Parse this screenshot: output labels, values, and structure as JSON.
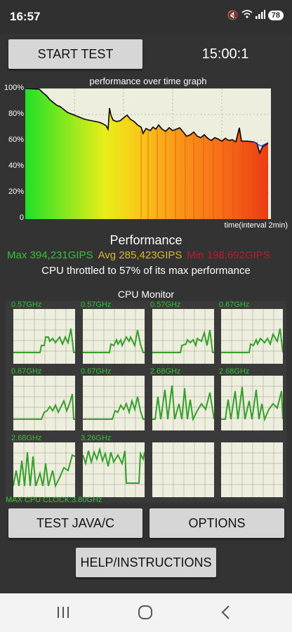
{
  "status_bar": {
    "time": "16:57",
    "battery": "78"
  },
  "buttons": {
    "start_test": "START TEST",
    "test_java_c": "TEST JAVA/C",
    "options": "OPTIONS",
    "help": "HELP/INSTRUCTIONS"
  },
  "timer": "15:00:1",
  "graph": {
    "title": "performance over time graph",
    "y_ticks": [
      "100%",
      "80%",
      "60%",
      "40%",
      "20%",
      "0"
    ],
    "x_label": "time(interval 2min)"
  },
  "performance": {
    "title": "Performance",
    "max": "Max 394,231GIPS",
    "avg": "Avg 285,423GIPS",
    "min": "Min 198,692GIPS",
    "throttle_text": "CPU throttled to 57% of its max performance"
  },
  "cpu_monitor": {
    "title": "CPU Monitor",
    "cores": [
      {
        "freq": "0.57GHz"
      },
      {
        "freq": "0.57GHz"
      },
      {
        "freq": "0.57GHz"
      },
      {
        "freq": "0.67GHz"
      },
      {
        "freq": "0.67GHz"
      },
      {
        "freq": "0.67GHz"
      },
      {
        "freq": "2.68GHz"
      },
      {
        "freq": "2.68GHz"
      },
      {
        "freq": "2.68GHz"
      },
      {
        "freq": "3.26GHz"
      },
      {
        "freq": ""
      },
      {
        "freq": ""
      }
    ],
    "max_clock": "MAX CPU CLOCK:3.80GHz"
  },
  "colors": {
    "max": "#34c334",
    "avg": "#d8b832",
    "min": "#c01830",
    "line": "#34a02a"
  },
  "navbar": {
    "icons": [
      "recents-icon",
      "home-icon",
      "back-icon"
    ]
  }
}
